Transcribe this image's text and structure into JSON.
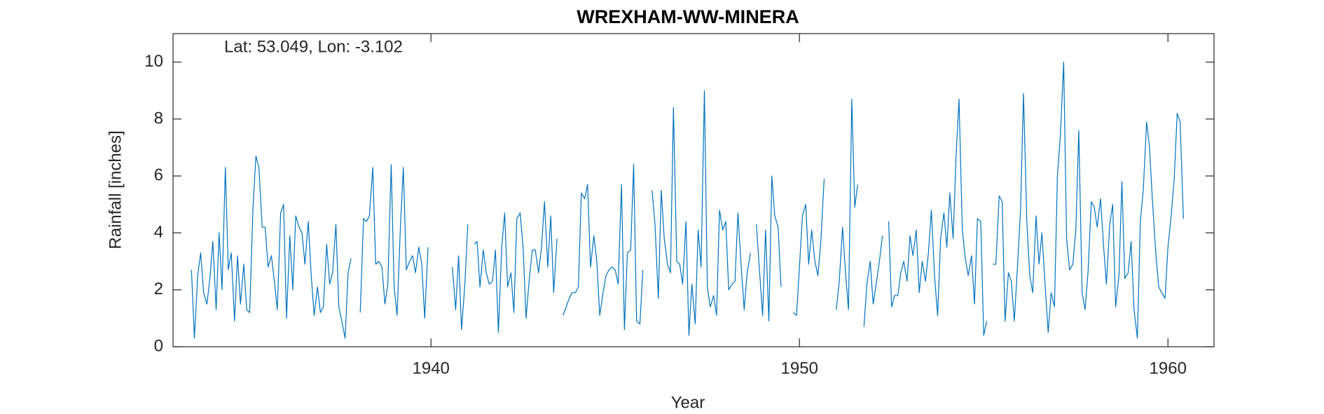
{
  "chart_data": {
    "type": "line",
    "title": "WREXHAM-WW-MINERA",
    "annotation": "Lat: 53.049, Lon: -3.102",
    "xlabel": "Year",
    "ylabel": "Rainfall [inches]",
    "color": "#0072bd",
    "xlim": [
      1933,
      1961.25
    ],
    "xticks": [
      1940,
      1950,
      1960
    ],
    "ylim": [
      0,
      11
    ],
    "yticks": [
      0,
      2,
      4,
      6,
      8,
      10
    ],
    "x": [
      1933.5,
      1933.58,
      1933.67,
      1933.75,
      1933.83,
      1933.92,
      1934,
      1934.08,
      1934.17,
      1934.25,
      1934.33,
      1934.42,
      1934.5,
      1934.58,
      1934.67,
      1934.75,
      1934.83,
      1934.92,
      1935,
      1935.08,
      1935.17,
      1935.25,
      1935.33,
      1935.42,
      1935.5,
      1935.58,
      1935.67,
      1935.75,
      1935.83,
      1935.92,
      1936,
      1936.08,
      1936.17,
      1936.25,
      1936.33,
      1936.42,
      1936.5,
      1936.58,
      1936.67,
      1936.75,
      1936.83,
      1936.92,
      1937,
      1937.08,
      1937.17,
      1937.25,
      1937.33,
      1937.42,
      1937.5,
      1937.58,
      1937.67,
      1937.75,
      1937.83,
      1937.92,
      1938,
      1938.08,
      1938.17,
      1938.25,
      1938.33,
      1938.42,
      1938.5,
      1938.58,
      1938.67,
      1938.75,
      1938.83,
      1938.92,
      1939,
      1939.08,
      1939.17,
      1939.25,
      1939.33,
      1939.42,
      1939.5,
      1939.58,
      1939.67,
      1939.75,
      1939.83,
      1939.92,
      1940,
      1940.08,
      1940.17,
      1940.25,
      1940.33,
      1940.42,
      1940.5,
      1940.58,
      1940.67,
      1940.75,
      1940.83,
      1940.92,
      1941,
      1941.08,
      1941.17,
      1941.25,
      1941.33,
      1941.42,
      1941.5,
      1941.58,
      1941.67,
      1941.75,
      1941.83,
      1941.92,
      1942,
      1942.08,
      1942.17,
      1942.25,
      1942.33,
      1942.42,
      1942.5,
      1942.58,
      1942.67,
      1942.75,
      1942.83,
      1942.92,
      1943,
      1943.08,
      1943.17,
      1943.25,
      1943.33,
      1943.42,
      1943.5,
      1943.58,
      1943.67,
      1943.75,
      1943.83,
      1943.92,
      1944,
      1944.08,
      1944.17,
      1944.25,
      1944.33,
      1944.42,
      1944.5,
      1944.58,
      1944.67,
      1944.75,
      1944.83,
      1944.92,
      1945,
      1945.08,
      1945.17,
      1945.25,
      1945.33,
      1945.42,
      1945.5,
      1945.58,
      1945.67,
      1945.75,
      1945.83,
      1945.92,
      1946,
      1946.08,
      1946.17,
      1946.25,
      1946.33,
      1946.42,
      1946.5,
      1946.58,
      1946.67,
      1946.75,
      1946.83,
      1946.92,
      1947,
      1947.08,
      1947.17,
      1947.25,
      1947.33,
      1947.42,
      1947.5,
      1947.58,
      1947.67,
      1947.75,
      1947.83,
      1947.92,
      1948,
      1948.08,
      1948.17,
      1948.25,
      1948.33,
      1948.42,
      1948.5,
      1948.58,
      1948.67,
      1948.75,
      1948.83,
      1948.92,
      1949,
      1949.08,
      1949.17,
      1949.25,
      1949.33,
      1949.42,
      1949.5,
      1949.58,
      1949.67,
      1949.75,
      1949.83,
      1949.92,
      1950,
      1950.08,
      1950.17,
      1950.25,
      1950.33,
      1950.42,
      1950.5,
      1950.58,
      1950.67,
      1950.75,
      1950.83,
      1950.92,
      1951,
      1951.08,
      1951.17,
      1951.25,
      1951.33,
      1951.42,
      1951.5,
      1951.58,
      1951.67,
      1951.75,
      1951.83,
      1951.92,
      1952,
      1952.08,
      1952.17,
      1952.25,
      1952.33,
      1952.42,
      1952.5,
      1952.58,
      1952.67,
      1952.75,
      1952.83,
      1952.92,
      1953,
      1953.08,
      1953.17,
      1953.25,
      1953.33,
      1953.42,
      1953.5,
      1953.58,
      1953.67,
      1953.75,
      1953.83,
      1953.92,
      1954,
      1954.08,
      1954.17,
      1954.25,
      1954.33,
      1954.42,
      1954.5,
      1954.58,
      1954.67,
      1954.75,
      1954.83,
      1954.92,
      1955,
      1955.08,
      1955.17,
      1955.25,
      1955.33,
      1955.42,
      1955.5,
      1955.58,
      1955.67,
      1955.75,
      1955.83,
      1955.92,
      1956,
      1956.08,
      1956.17,
      1956.25,
      1956.33,
      1956.42,
      1956.5,
      1956.58,
      1956.67,
      1956.75,
      1956.83,
      1956.92,
      1957,
      1957.08,
      1957.17,
      1957.25,
      1957.33,
      1957.42,
      1957.5,
      1957.58,
      1957.67,
      1957.75,
      1957.83,
      1957.92,
      1958,
      1958.08,
      1958.17,
      1958.25,
      1958.33,
      1958.42,
      1958.5,
      1958.58,
      1958.67,
      1958.75,
      1958.83,
      1958.92,
      1959,
      1959.08,
      1959.17,
      1959.25,
      1959.33,
      1959.42,
      1959.5,
      1959.58,
      1959.67,
      1959.75,
      1959.83,
      1959.92,
      1960,
      1960.08,
      1960.17,
      1960.25,
      1960.33,
      1960.42
    ],
    "values": [
      2.7,
      0.3,
      2.5,
      3.3,
      1.9,
      1.5,
      2.4,
      3.7,
      1.3,
      4.0,
      2.0,
      6.3,
      2.7,
      3.3,
      0.9,
      3.2,
      1.5,
      2.9,
      1.3,
      1.2,
      4.9,
      6.7,
      6.3,
      4.2,
      4.2,
      2.8,
      3.2,
      2.3,
      1.3,
      4.7,
      5.0,
      1.0,
      3.9,
      2.0,
      4.6,
      4.2,
      4.0,
      2.9,
      4.4,
      2.5,
      1.1,
      2.1,
      1.2,
      1.4,
      3.6,
      2.2,
      2.6,
      4.3,
      1.4,
      0.9,
      0.3,
      2.6,
      3.1,
      null,
      null,
      1.2,
      4.5,
      4.4,
      4.6,
      6.3,
      2.9,
      3.0,
      2.8,
      1.5,
      2.2,
      6.4,
      2.1,
      1.1,
      4.2,
      6.3,
      2.7,
      3.0,
      3.2,
      2.6,
      3.5,
      2.9,
      1.0,
      3.5,
      null,
      null,
      null,
      null,
      null,
      null,
      null,
      2.8,
      1.3,
      3.2,
      0.6,
      2.2,
      4.3,
      null,
      3.6,
      3.7,
      2.1,
      3.4,
      2.6,
      2.2,
      2.3,
      3.4,
      0.5,
      3.5,
      4.7,
      2.1,
      2.6,
      1.2,
      4.5,
      4.7,
      3.5,
      1.0,
      2.4,
      3.4,
      3.4,
      2.6,
      3.5,
      5.1,
      2.8,
      4.6,
      1.9,
      3.8,
      null,
      1.1,
      1.4,
      1.7,
      1.9,
      1.9,
      2.1,
      5.4,
      5.2,
      5.7,
      2.8,
      3.9,
      3.0,
      1.1,
      1.9,
      2.5,
      2.7,
      2.8,
      2.7,
      2.2,
      5.7,
      0.6,
      3.3,
      3.4,
      6.4,
      0.9,
      0.8,
      2.7,
      null,
      null,
      5.5,
      4.3,
      1.7,
      5.5,
      3.8,
      2.9,
      2.6,
      8.4,
      3.0,
      2.9,
      2.2,
      4.4,
      0.4,
      2.2,
      0.8,
      4.1,
      2.8,
      9.0,
      2.1,
      1.4,
      1.8,
      1.1,
      4.8,
      4.1,
      4.4,
      2.0,
      2.2,
      2.3,
      4.7,
      2.8,
      1.3,
      2.6,
      3.3,
      null,
      4.3,
      2.6,
      1.1,
      4.1,
      0.9,
      6.0,
      4.6,
      4.2,
      2.1,
      null,
      null,
      null,
      1.2,
      1.1,
      2.8,
      4.6,
      5.0,
      2.9,
      4.1,
      3.0,
      2.5,
      3.7,
      5.9,
      null,
      null,
      null,
      1.3,
      2.3,
      4.2,
      2.6,
      1.3,
      8.7,
      4.9,
      5.7,
      null,
      0.7,
      2.2,
      3.0,
      1.5,
      2.2,
      3.0,
      3.9,
      null,
      4.4,
      1.4,
      1.8,
      1.8,
      2.6,
      3.0,
      2.3,
      3.9,
      3.2,
      4.1,
      1.9,
      3.0,
      2.3,
      3.3,
      4.8,
      2.4,
      1.1,
      3.8,
      4.7,
      3.5,
      5.4,
      3.8,
      6.7,
      8.7,
      4.1,
      3.1,
      2.5,
      3.2,
      1.5,
      4.5,
      4.4,
      0.4,
      0.9,
      null,
      2.9,
      2.9,
      5.3,
      5.1,
      0.9,
      2.6,
      2.3,
      0.9,
      2.9,
      4.8,
      8.9,
      4.4,
      2.5,
      1.9,
      4.6,
      2.9,
      4.0,
      2.1,
      0.5,
      1.9,
      1.4,
      6.0,
      7.4,
      10.0,
      3.8,
      2.7,
      2.9,
      4.1,
      7.6,
      1.9,
      1.3,
      2.6,
      5.1,
      4.9,
      4.2,
      5.2,
      3.6,
      2.2,
      4.3,
      5.0,
      1.4,
      2.5,
      5.8,
      2.4,
      2.6,
      3.7,
      1.3,
      0.3,
      4.4,
      5.5,
      7.9,
      7.0,
      5.1,
      3.3,
      2.1,
      1.9,
      1.7,
      3.5,
      4.5,
      5.9,
      8.2,
      7.9,
      4.5
    ]
  }
}
